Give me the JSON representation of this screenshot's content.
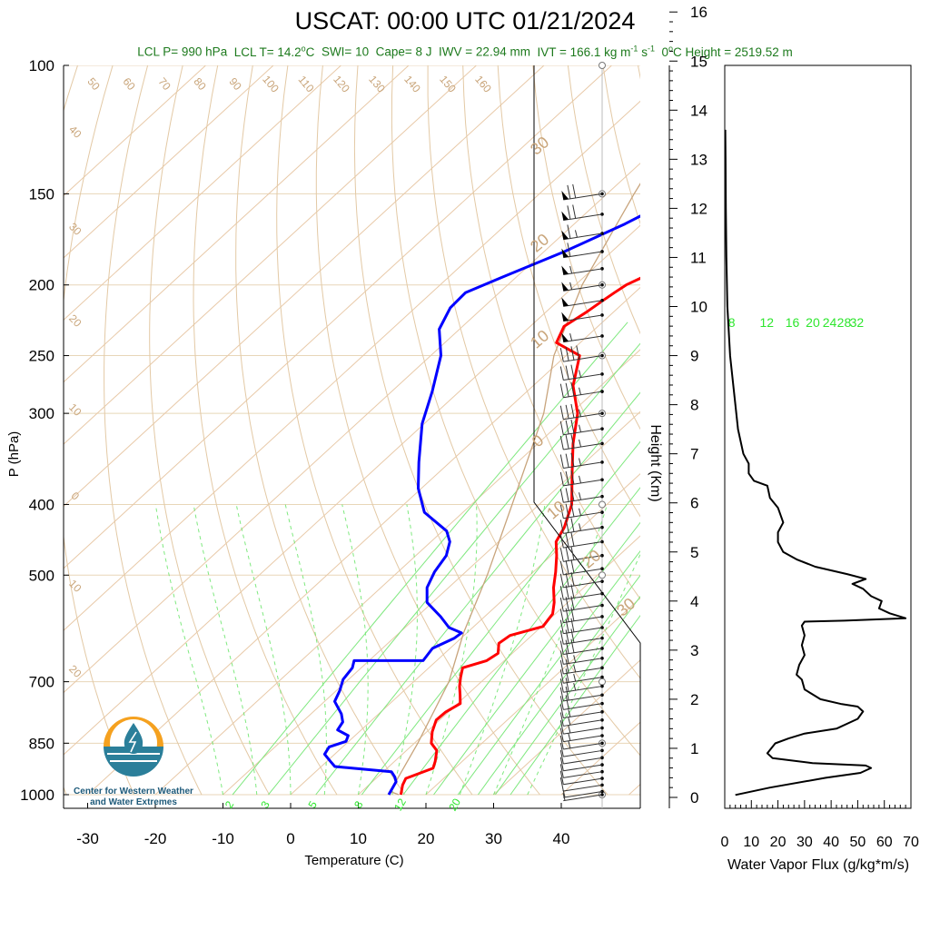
{
  "title": "USCAT: 00:00 UTC 01/21/2024",
  "subtitle": {
    "lcl_p": "LCL P= 990 hPa",
    "lcl_t_prefix": "LCL T= 14.2",
    "lcl_t_unit": "C",
    "swi": "SWI= 10",
    "cape": "Cape= 8 J",
    "iwv": "IWV = 22.94 mm",
    "ivt_prefix": "IVT = 166.1 kg m",
    "ivt_exp1": "-1",
    "ivt_mid": " s",
    "ivt_exp2": "-1",
    "height0_prefix": "0",
    "height0_rest": "C Height = 2519.52 m"
  },
  "logo": {
    "line1": "Center for Western Weather",
    "line2": "and Water Extremes"
  },
  "colors": {
    "temperature": "#ff0000",
    "dewpoint": "#0000ff",
    "subtitle": "#1d7a1d",
    "dry_adiabat": "#d2b48c",
    "mixing_ratio": "#00dd00"
  },
  "chart_data": [
    {
      "type": "line",
      "chart": "skew-T log-P sounding",
      "xlabel": "Temperature (C)",
      "ylabel": "P (hPa)",
      "x_ticks": [
        "-30",
        "-20",
        "-10",
        "0",
        "10",
        "20",
        "30",
        "40"
      ],
      "y_ticks": [
        "100",
        "150",
        "200",
        "250",
        "300",
        "400",
        "500",
        "700",
        "850",
        "1000"
      ],
      "ylim": [
        1000,
        100
      ],
      "y_scale": "log",
      "mixing_ratio_top_labels": [
        "8",
        "12",
        "16",
        "20",
        "24",
        "28",
        "32"
      ],
      "mixing_ratio_bottom_labels": [
        "2",
        "3",
        "5",
        "8",
        "12",
        "20"
      ],
      "dry_adiabat_labels": [
        "50",
        "60",
        "70",
        "80",
        "90",
        "100",
        "110",
        "120",
        "130",
        "140",
        "150",
        "160"
      ],
      "isotherm_labels_left": [
        "40",
        "30",
        "20",
        "10",
        "0",
        "10",
        "20"
      ],
      "isotherm_labels_right": [
        "30",
        "20",
        "10",
        "0",
        "10",
        "20",
        "30"
      ],
      "series": [
        {
          "key": "temperature",
          "values": [
            [
              16.3,
              1000
            ],
            [
              15.0,
              970
            ],
            [
              14.4,
              950
            ],
            [
              16.8,
              920
            ],
            [
              16.0,
              900
            ],
            [
              14.5,
              870
            ],
            [
              12.5,
              850
            ],
            [
              10.8,
              820
            ],
            [
              9.5,
              790
            ],
            [
              9.6,
              770
            ],
            [
              10.4,
              750
            ],
            [
              9.0,
              730
            ],
            [
              7.5,
              710
            ],
            [
              6.2,
              690
            ],
            [
              5.0,
              670
            ],
            [
              7.4,
              655
            ],
            [
              7.9,
              640
            ],
            [
              6.4,
              620
            ],
            [
              6.8,
              605
            ],
            [
              10.2,
              588
            ],
            [
              9.6,
              565
            ],
            [
              8.0,
              545
            ],
            [
              5.5,
              520
            ],
            [
              3.3,
              495
            ],
            [
              0.8,
              470
            ],
            [
              -1.5,
              450
            ],
            [
              -2.6,
              430
            ],
            [
              -5.2,
              400
            ],
            [
              -10.5,
              360
            ],
            [
              -14.8,
              330
            ],
            [
              -19.0,
              300
            ],
            [
              -24.1,
              275
            ],
            [
              -28.0,
              250
            ],
            [
              -33.5,
              240
            ],
            [
              -35.0,
              228
            ],
            [
              -34.0,
              218
            ],
            [
              -33.4,
              210
            ],
            [
              -33.0,
              205
            ],
            [
              -32.5,
              200
            ],
            [
              -30.0,
              190
            ],
            [
              -27.2,
              180
            ],
            [
              -25.0,
              172
            ],
            [
              -22.4,
              165
            ],
            [
              -20.8,
              158
            ],
            [
              -19.3,
              150
            ]
          ]
        },
        {
          "key": "dewpoint",
          "values": [
            [
              14.5,
              1000
            ],
            [
              14.0,
              980
            ],
            [
              13.5,
              960
            ],
            [
              12.5,
              945
            ],
            [
              11.2,
              930
            ],
            [
              5.0,
              920
            ],
            [
              2.0,
              915
            ],
            [
              0.5,
              900
            ],
            [
              -1.5,
              880
            ],
            [
              -2.0,
              860
            ],
            [
              -0.4,
              845
            ],
            [
              -1.0,
              830
            ],
            [
              -3.5,
              815
            ],
            [
              -4.0,
              795
            ],
            [
              -5.5,
              775
            ],
            [
              -8.5,
              745
            ],
            [
              -9.5,
              720
            ],
            [
              -10.8,
              695
            ],
            [
              -11.3,
              670
            ],
            [
              -12.2,
              655
            ],
            [
              -2.0,
              655
            ],
            [
              -2.6,
              630
            ],
            [
              -1.0,
              610
            ],
            [
              -0.8,
              600
            ],
            [
              -3.5,
              590
            ],
            [
              -6.5,
              570
            ],
            [
              -10.8,
              545
            ],
            [
              -13.2,
              520
            ],
            [
              -14.6,
              495
            ],
            [
              -15.5,
              470
            ],
            [
              -17.2,
              450
            ],
            [
              -19.4,
              435
            ],
            [
              -25.7,
              410
            ],
            [
              -30.5,
              380
            ],
            [
              -34.6,
              350
            ],
            [
              -40.3,
              310
            ],
            [
              -44.0,
              280
            ],
            [
              -48.5,
              250
            ],
            [
              -53.0,
              230
            ],
            [
              -54.8,
              215
            ],
            [
              -55.0,
              205
            ],
            [
              -52.0,
              195
            ],
            [
              -47.0,
              180
            ],
            [
              -42.5,
              165
            ],
            [
              -40.0,
              155
            ],
            [
              -38.5,
              150
            ]
          ]
        },
        {
          "key": "parcel",
          "values": [
            [
              16.0,
              1000
            ],
            [
              14.2,
              990
            ],
            [
              10.5,
              850
            ],
            [
              5.2,
              700
            ],
            [
              -0.5,
              600
            ],
            [
              -6.3,
              500
            ],
            [
              -14.0,
              400
            ],
            [
              -24.0,
              300
            ],
            [
              -31.8,
              250
            ],
            [
              -39.0,
              200
            ],
            [
              -46.0,
              150
            ],
            [
              -55.0,
              100
            ]
          ]
        }
      ]
    },
    {
      "type": "line",
      "chart": "water vapor flux profile",
      "xlabel": "Water Vapor Flux (g/kg*m/s)",
      "ylabel": "Height (Km)",
      "x_ticks": [
        "0",
        "10",
        "20",
        "30",
        "40",
        "50",
        "60",
        "70"
      ],
      "y_ticks": [
        "0",
        "1",
        "2",
        "3",
        "4",
        "5",
        "6",
        "7",
        "8",
        "9",
        "10",
        "11",
        "12",
        "13",
        "14",
        "15",
        "16"
      ],
      "xlim": [
        0,
        70
      ],
      "ylim": [
        0,
        16.3
      ],
      "series": [
        {
          "key": "flux",
          "values": [
            [
              4,
              0.05
            ],
            [
              17,
              0.2
            ],
            [
              38,
              0.4
            ],
            [
              51,
              0.5
            ],
            [
              55,
              0.6
            ],
            [
              53,
              0.65
            ],
            [
              33,
              0.7
            ],
            [
              18,
              0.8
            ],
            [
              16,
              0.9
            ],
            [
              19,
              1.1
            ],
            [
              24,
              1.2
            ],
            [
              30,
              1.3
            ],
            [
              42,
              1.4
            ],
            [
              50,
              1.6
            ],
            [
              52,
              1.75
            ],
            [
              50,
              1.85
            ],
            [
              44,
              1.9
            ],
            [
              36,
              2.0
            ],
            [
              30,
              2.2
            ],
            [
              29,
              2.4
            ],
            [
              27,
              2.5
            ],
            [
              28,
              2.7
            ],
            [
              30,
              2.9
            ],
            [
              29,
              3.1
            ],
            [
              30,
              3.3
            ],
            [
              29,
              3.5
            ],
            [
              30,
              3.58
            ],
            [
              45,
              3.6
            ],
            [
              68,
              3.65
            ],
            [
              62,
              3.75
            ],
            [
              58,
              3.85
            ],
            [
              59,
              4.0
            ],
            [
              55,
              4.1
            ],
            [
              52,
              4.25
            ],
            [
              48,
              4.35
            ],
            [
              53,
              4.45
            ],
            [
              46,
              4.55
            ],
            [
              34,
              4.7
            ],
            [
              27,
              4.85
            ],
            [
              22,
              5.0
            ],
            [
              20,
              5.2
            ],
            [
              20,
              5.4
            ],
            [
              22,
              5.6
            ],
            [
              20,
              5.9
            ],
            [
              17,
              6.1
            ],
            [
              16,
              6.35
            ],
            [
              11,
              6.45
            ],
            [
              9,
              6.6
            ],
            [
              9,
              6.8
            ],
            [
              7,
              7.0
            ],
            [
              5,
              7.5
            ],
            [
              4,
              8.0
            ],
            [
              2,
              9.0
            ],
            [
              1,
              10.0
            ],
            [
              0.6,
              11.0
            ],
            [
              0.4,
              12.0
            ],
            [
              0.3,
              13.0
            ],
            [
              0.2,
              13.6
            ]
          ]
        }
      ]
    },
    {
      "type": "scatter",
      "chart": "wind barbs",
      "pressure_levels": [
        150,
        160,
        170,
        180,
        190,
        200,
        210,
        220,
        235,
        250,
        265,
        280,
        300,
        315,
        330,
        350,
        370,
        390,
        410,
        430,
        450,
        470,
        490,
        510,
        530,
        550,
        570,
        590,
        610,
        630,
        650,
        670,
        690,
        710,
        730,
        750,
        770,
        790,
        810,
        830,
        850,
        870,
        890,
        910,
        930,
        950,
        970,
        990,
        1000
      ],
      "wind_speed_kt": [
        70,
        70,
        65,
        60,
        55,
        55,
        50,
        50,
        55,
        40,
        35,
        35,
        35,
        35,
        35,
        35,
        35,
        35,
        35,
        35,
        30,
        30,
        30,
        30,
        30,
        30,
        30,
        30,
        30,
        30,
        25,
        25,
        25,
        25,
        20,
        20,
        15,
        15,
        15,
        15,
        15,
        10,
        10,
        10,
        10,
        10,
        10,
        5,
        5
      ]
    }
  ]
}
